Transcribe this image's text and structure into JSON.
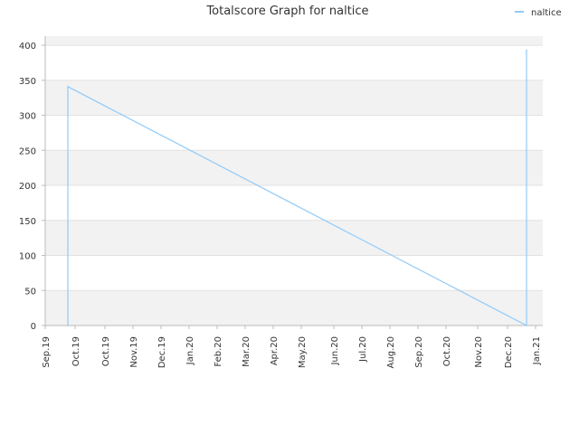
{
  "chart_data": {
    "type": "line",
    "title": "Totalscore Graph for naltice",
    "xlabel": "",
    "ylabel": "",
    "x_tick_labels": [
      "Sep.19",
      "Oct.19",
      "Oct.19",
      "Nov.19",
      "Dec.19",
      "Jan.20",
      "Feb.20",
      "Mar.20",
      "Apr.20",
      "May.20",
      "Jun.20",
      "Jul.20",
      "Aug.20",
      "Sep.20",
      "Oct.20",
      "Nov.20",
      "Dec.20",
      "Jan.21"
    ],
    "y_ticks": [
      0,
      50,
      100,
      150,
      200,
      250,
      300,
      350,
      400
    ],
    "ylim": [
      0,
      400
    ],
    "grid": true,
    "legend_position": "top-right",
    "series": [
      {
        "name": "naltice",
        "color": "#90caf9",
        "points": [
          {
            "x": "Oct.19",
            "y": 0
          },
          {
            "x": "Oct.19",
            "y": 341
          },
          {
            "x": "Jan.21",
            "y": 0
          },
          {
            "x": "Jan.21",
            "y": 393
          }
        ]
      }
    ]
  }
}
